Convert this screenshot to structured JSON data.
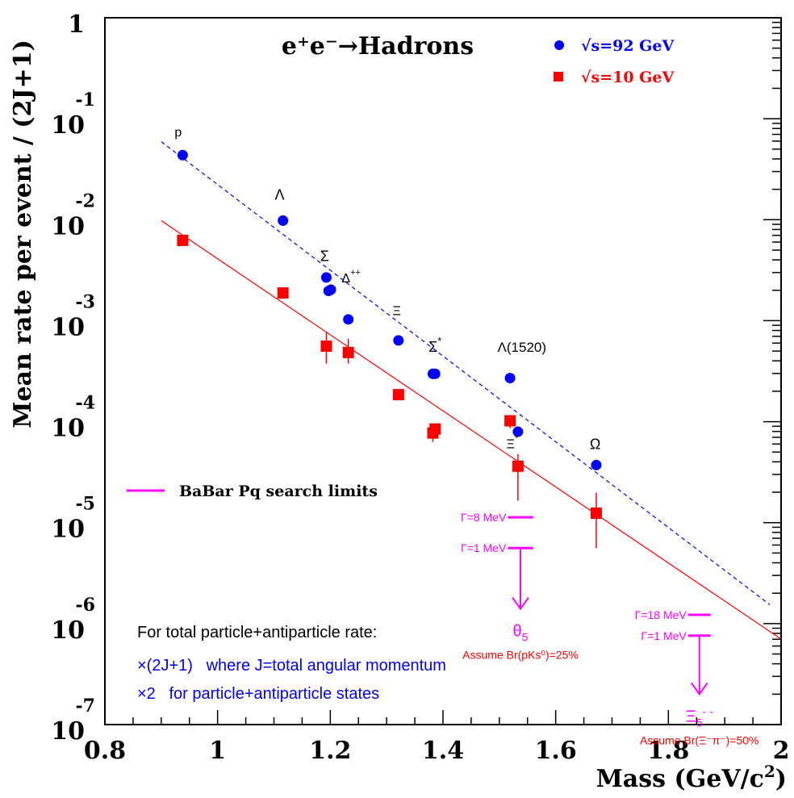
{
  "chart_data": {
    "type": "scatter",
    "title": "e⁺e⁻→Hadrons",
    "xlabel": "Mass (GeV/c²)",
    "ylabel": "Mean rate per event / (2J+1)",
    "xlim": [
      0.8,
      2.0
    ],
    "ylim": [
      1e-07,
      1
    ],
    "yscale": "log",
    "x_ticks": [
      "0.8",
      "1",
      "1.2",
      "1.4",
      "1.6",
      "1.8",
      "2"
    ],
    "y_ticks": [
      {
        "base": "1",
        "exp": ""
      },
      {
        "base": "10",
        "exp": "-1"
      },
      {
        "base": "10",
        "exp": "-2"
      },
      {
        "base": "10",
        "exp": "-3"
      },
      {
        "base": "10",
        "exp": "-4"
      },
      {
        "base": "10",
        "exp": "-5"
      },
      {
        "base": "10",
        "exp": "-6"
      },
      {
        "base": "10",
        "exp": "-7"
      }
    ],
    "legend": {
      "placement": "top-right",
      "entries": [
        {
          "label": "√s=92 GeV",
          "color": "#0000ff",
          "marker": "circle"
        },
        {
          "label": "√s=10 GeV",
          "color": "#ff0000",
          "marker": "square"
        }
      ]
    },
    "series": [
      {
        "name": "√s=92 GeV",
        "color": "#0000ff",
        "marker": "circle",
        "points": [
          {
            "x": 0.938,
            "y": 0.0436
          },
          {
            "x": 1.116,
            "y": 0.0098
          },
          {
            "x": 1.193,
            "y": 0.00268
          },
          {
            "x": 1.197,
            "y": 0.00197
          },
          {
            "x": 1.201,
            "y": 0.00203
          },
          {
            "x": 1.232,
            "y": 0.00103
          },
          {
            "x": 1.321,
            "y": 0.000638
          },
          {
            "x": 1.382,
            "y": 0.000298
          },
          {
            "x": 1.386,
            "y": 0.000298
          },
          {
            "x": 1.519,
            "y": 0.00027
          },
          {
            "x": 1.533,
            "y": 7.95e-05
          },
          {
            "x": 1.672,
            "y": 3.72e-05
          }
        ]
      },
      {
        "name": "√s=10 GeV",
        "color": "#ff0000",
        "marker": "square",
        "points": [
          {
            "x": 0.938,
            "y": 0.00624,
            "ylo": 0.00624,
            "yhi": 0.00624
          },
          {
            "x": 1.116,
            "y": 0.00188,
            "ylo": 0.00188,
            "yhi": 0.00188
          },
          {
            "x": 1.193,
            "y": 0.000559,
            "ylo": 0.000375,
            "yhi": 0.000765
          },
          {
            "x": 1.232,
            "y": 0.000484,
            "ylo": 0.000375,
            "yhi": 0.000663
          },
          {
            "x": 1.321,
            "y": 0.000185,
            "ylo": 0.000185,
            "yhi": 0.000185
          },
          {
            "x": 1.382,
            "y": 7.72e-05,
            "ylo": 6.3e-05,
            "yhi": 8.9e-05
          },
          {
            "x": 1.386,
            "y": 8.45e-05,
            "ylo": 6.8e-05,
            "yhi": 9.6e-05
          },
          {
            "x": 1.519,
            "y": 0.000102,
            "ylo": 8.6e-05,
            "yhi": 0.000116
          },
          {
            "x": 1.533,
            "y": 3.62e-05,
            "ylo": 1.65e-05,
            "yhi": 4.75e-05
          },
          {
            "x": 1.672,
            "y": 1.24e-05,
            "ylo": 5.6e-06,
            "yhi": 1.97e-05
          }
        ]
      }
    ],
    "fits": [
      {
        "name": "√s=92 GeV",
        "color": "#0000ff",
        "style": "dashed",
        "x": [
          0.9,
          1.98
        ],
        "y": [
          0.0592,
          1.54e-06
        ]
      },
      {
        "name": "√s=10 GeV",
        "color": "#ff0000",
        "style": "solid",
        "x": [
          0.9,
          2.0
        ],
        "y": [
          0.00977,
          7.03e-07
        ]
      }
    ],
    "particle_labels": [
      {
        "text": "p",
        "x": 0.93,
        "y": 0.067,
        "size": 16,
        "kind": "sans"
      },
      {
        "text": "Λ",
        "x": 1.11,
        "y": 0.0158,
        "size": 18,
        "kind": "sans"
      },
      {
        "text": "Σ",
        "x": 1.19,
        "y": 0.0039,
        "size": 18,
        "kind": "sans"
      },
      {
        "text": "Δ",
        "sup": "++",
        "x": 1.237,
        "y": 0.0024,
        "size": 16,
        "kind": "sans"
      },
      {
        "text": "Ξ",
        "x": 1.318,
        "y": 0.00114,
        "size": 16,
        "kind": "sans"
      },
      {
        "text": "Σ",
        "sup": "*",
        "x": 1.386,
        "y": 0.00049,
        "size": 18,
        "kind": "sans"
      },
      {
        "text": "Λ(1520)",
        "x": 1.54,
        "y": 0.00049,
        "size": 17,
        "kind": "sans"
      },
      {
        "text": "Ξ",
        "sup": "*",
        "x": 1.523,
        "y": 5.45e-05,
        "size": 16,
        "kind": "sans"
      },
      {
        "text": "Ω",
        "x": 1.67,
        "y": 5.35e-05,
        "size": 18,
        "kind": "sans"
      }
    ],
    "search_limits": {
      "legend_label": "BaBar Pq search limits",
      "color": "#ff00ff",
      "groups": [
        {
          "x_range": [
            1.515,
            1.56
          ],
          "bars": [
            {
              "label": "Γ=8 MeV",
              "y": 1.13e-05
            },
            {
              "label": "Γ=1 MeV",
              "y": 5.6e-06
            }
          ],
          "arrow_to_y": 1.4e-06,
          "state": "θ",
          "state_sub": "5",
          "assumption": "Assume Br(pKs⁰)=25%"
        },
        {
          "x_range": [
            1.835,
            1.875
          ],
          "bars": [
            {
              "label": "Γ=18 MeV",
              "y": 1.22e-06
            },
            {
              "label": "Γ=1 MeV",
              "y": 7.6e-07
            }
          ],
          "arrow_to_y": 2e-07,
          "state": "Ξ",
          "state_sub": "5",
          "state_sup": "- -",
          "assumption": "Assume Br(Ξ⁻π⁻)=50%"
        }
      ]
    },
    "notes": [
      {
        "text": "For total particle+antiparticle rate:",
        "color": "#000000"
      },
      {
        "text": "×(2J+1)   where J=total angular momentum",
        "color": "#0000ff"
      },
      {
        "text": "×2   for particle+antiparticle states",
        "color": "#0000ff"
      }
    ]
  }
}
